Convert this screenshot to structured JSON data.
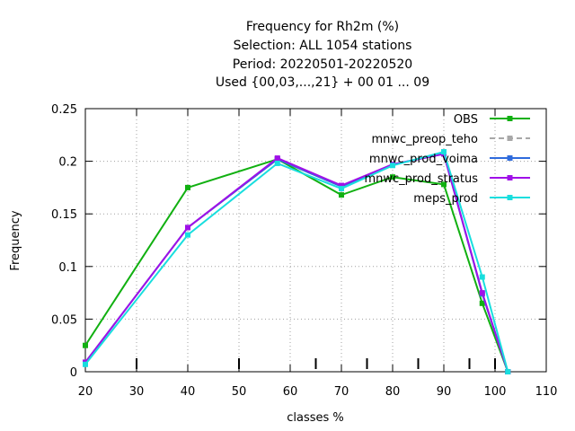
{
  "chart_data": {
    "type": "line",
    "title_lines": [
      "Frequency  for Rh2m (%)",
      "Selection: ALL   1054 stations",
      "Period: 20220501-20220520",
      "Used {00,03,...,21} + 00 01 ... 09"
    ],
    "xlabel": "classes %",
    "ylabel": "Frequency",
    "xlim": [
      20,
      110
    ],
    "ylim": [
      0,
      0.25
    ],
    "x_ticks": [
      20,
      30,
      40,
      50,
      60,
      70,
      80,
      90,
      100,
      110
    ],
    "y_ticks": [
      0,
      0.05,
      0.1,
      0.15,
      0.2,
      0.25
    ],
    "y_tick_labels": [
      "0",
      "0.05",
      "0.1",
      "0.15",
      "0.2",
      "0.25"
    ],
    "class_markers": [
      30,
      50,
      65,
      75,
      85,
      95,
      100
    ],
    "grid": true,
    "legend_position": "top-right",
    "series": [
      {
        "name": "OBS",
        "color": "#11b011",
        "dashed": false,
        "x": [
          20,
          40,
          57.5,
          70,
          80,
          90,
          97.5,
          102.5
        ],
        "y": [
          0.025,
          0.175,
          0.202,
          0.168,
          0.185,
          0.178,
          0.065,
          0
        ]
      },
      {
        "name": "mnwc_preop_teho",
        "color": "#a8a8a8",
        "dashed": true,
        "x": [
          20,
          40,
          57.5,
          70,
          80,
          90,
          97.5,
          102.5
        ],
        "y": [
          0.009,
          0.137,
          0.202,
          0.176,
          0.197,
          0.207,
          0.074,
          0
        ]
      },
      {
        "name": "mnwc_prod_voima",
        "color": "#2f6bdc",
        "dashed": false,
        "x": [
          20,
          40,
          57.5,
          70,
          80,
          90,
          97.5,
          102.5
        ],
        "y": [
          0.009,
          0.137,
          0.202,
          0.176,
          0.197,
          0.207,
          0.074,
          0
        ]
      },
      {
        "name": "mnwc_prod_stratus",
        "color": "#a010e8",
        "dashed": false,
        "x": [
          20,
          40,
          57.5,
          70,
          80,
          90,
          97.5,
          102.5
        ],
        "y": [
          0.009,
          0.137,
          0.203,
          0.177,
          0.197,
          0.207,
          0.075,
          0
        ]
      },
      {
        "name": "meps_prod",
        "color": "#18dede",
        "dashed": false,
        "x": [
          20,
          40,
          57.5,
          70,
          80,
          90,
          97.5,
          102.5
        ],
        "y": [
          0.007,
          0.13,
          0.198,
          0.174,
          0.196,
          0.209,
          0.09,
          0
        ]
      }
    ]
  }
}
